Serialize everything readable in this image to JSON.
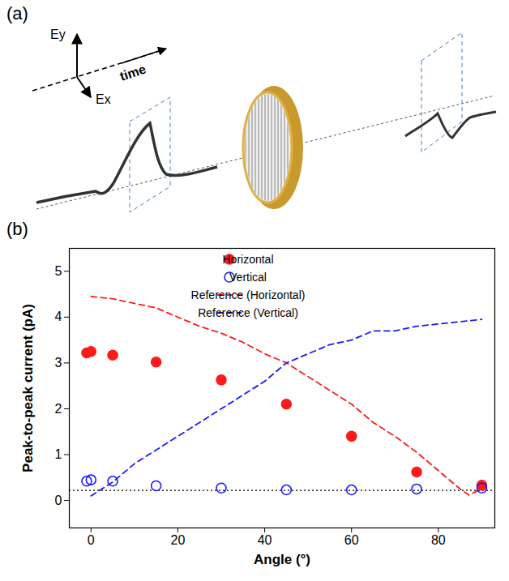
{
  "diagram": {
    "label": "(a)",
    "texts": [
      "Ey",
      "Ex",
      "time"
    ]
  },
  "chart_data": {
    "type": "scatter",
    "panel_label": "(b)",
    "xlabel": "Angle (°)",
    "ylabel": "Peak-to-peak current (pA)",
    "xlim": [
      -5,
      93
    ],
    "xticks": [
      0,
      20,
      40,
      60,
      80
    ],
    "ylim": [
      -0.6,
      5.5
    ],
    "yticks": [
      0,
      1,
      2,
      3,
      4,
      5
    ],
    "grid": false,
    "legend": "top-right",
    "hline": {
      "y": 0.22,
      "color": "#000000",
      "line_style": "dotted"
    },
    "series": [
      {
        "name": "Horizontal",
        "type": "scatter",
        "marker": "circle",
        "color": "#ff1a1a",
        "x": [
          -1,
          0,
          5,
          15,
          30,
          45,
          60,
          75,
          90
        ],
        "values": [
          3.22,
          3.25,
          3.17,
          3.02,
          2.63,
          2.1,
          1.4,
          0.62,
          0.33
        ]
      },
      {
        "name": "Vertical",
        "type": "scatter",
        "marker": "open_circle",
        "color": "#1a1aff",
        "x": [
          -1,
          0,
          5,
          15,
          30,
          45,
          60,
          75,
          90
        ],
        "values": [
          0.42,
          0.45,
          0.42,
          0.32,
          0.27,
          0.23,
          0.23,
          0.25,
          0.27
        ]
      },
      {
        "name": "Reference (Horizontal)",
        "type": "line",
        "line_style": "dashed",
        "color": "#ff1a1a",
        "x": [
          0,
          5,
          10,
          15,
          20,
          25,
          30,
          35,
          40,
          45,
          50,
          55,
          60,
          65,
          70,
          75,
          80,
          85,
          87,
          90
        ],
        "values": [
          4.45,
          4.4,
          4.3,
          4.2,
          4.0,
          3.8,
          3.65,
          3.45,
          3.2,
          3.0,
          2.7,
          2.4,
          2.1,
          1.7,
          1.4,
          1.05,
          0.65,
          0.25,
          0.12,
          0.25
        ]
      },
      {
        "name": "Reference (Vertical)",
        "type": "line",
        "line_style": "dashed",
        "color": "#1a1aff",
        "x": [
          0,
          5,
          10,
          15,
          20,
          25,
          30,
          35,
          40,
          45,
          50,
          55,
          60,
          65,
          70,
          75,
          80,
          85,
          90
        ],
        "values": [
          0.1,
          0.4,
          0.8,
          1.1,
          1.4,
          1.7,
          2.0,
          2.3,
          2.6,
          3.0,
          3.2,
          3.4,
          3.5,
          3.7,
          3.7,
          3.8,
          3.85,
          3.9,
          3.95
        ]
      }
    ]
  }
}
